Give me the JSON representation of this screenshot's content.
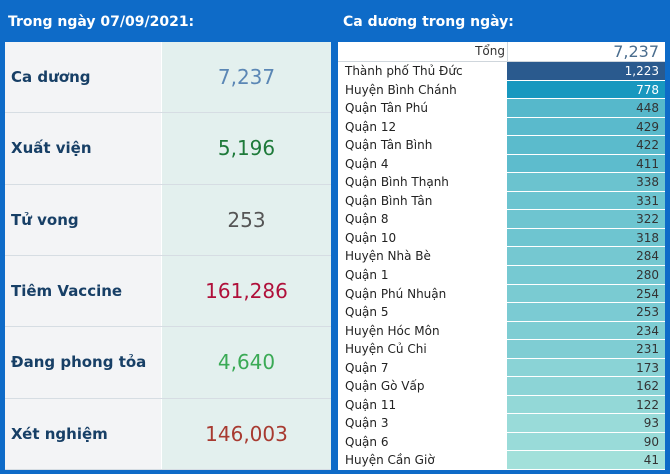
{
  "left": {
    "title": "Trong ngày 07/09/2021:",
    "stats": [
      {
        "label": "Ca dương",
        "value": "7,237",
        "color": "#5b87b5"
      },
      {
        "label": "Xuất viện",
        "value": "5,196",
        "color": "#1e7a3a"
      },
      {
        "label": "Tử vong",
        "value": "253",
        "color": "#555555"
      },
      {
        "label": "Tiêm Vaccine",
        "value": "161,286",
        "color": "#b0103a"
      },
      {
        "label": "Đang phong tỏa",
        "value": "4,640",
        "color": "#3aaa55"
      },
      {
        "label": "Xét nghiệm",
        "value": "146,003",
        "color": "#a83a30"
      }
    ]
  },
  "right": {
    "title": "Ca dương trong ngày:",
    "total_label": "Tổng",
    "total_value": "7,237",
    "rows": [
      {
        "name": "Thành phố Thủ Đức",
        "value": "1,223",
        "n": 1223
      },
      {
        "name": "Huyện Bình Chánh",
        "value": "778",
        "n": 778
      },
      {
        "name": "Quận Tân Phú",
        "value": "448",
        "n": 448
      },
      {
        "name": "Quận 12",
        "value": "429",
        "n": 429
      },
      {
        "name": "Quận Tân Bình",
        "value": "422",
        "n": 422
      },
      {
        "name": "Quận 4",
        "value": "411",
        "n": 411
      },
      {
        "name": "Quận Bình Thạnh",
        "value": "338",
        "n": 338
      },
      {
        "name": "Quận Bình Tân",
        "value": "331",
        "n": 331
      },
      {
        "name": "Quận 8",
        "value": "322",
        "n": 322
      },
      {
        "name": "Quận 10",
        "value": "318",
        "n": 318
      },
      {
        "name": "Huyện Nhà Bè",
        "value": "284",
        "n": 284
      },
      {
        "name": "Quận 1",
        "value": "280",
        "n": 280
      },
      {
        "name": "Quận Phú Nhuận",
        "value": "254",
        "n": 254
      },
      {
        "name": "Quận 5",
        "value": "253",
        "n": 253
      },
      {
        "name": "Huyện Hóc Môn",
        "value": "234",
        "n": 234
      },
      {
        "name": "Huyện Củ Chi",
        "value": "231",
        "n": 231
      },
      {
        "name": "Quận 7",
        "value": "173",
        "n": 173
      },
      {
        "name": "Quận Gò Vấp",
        "value": "162",
        "n": 162
      },
      {
        "name": "Quận 11",
        "value": "122",
        "n": 122
      },
      {
        "name": "Quận 3",
        "value": "93",
        "n": 93
      },
      {
        "name": "Quận 6",
        "value": "90",
        "n": 90
      },
      {
        "name": "Huyện Cần Giờ",
        "value": "41",
        "n": 41
      }
    ]
  }
}
